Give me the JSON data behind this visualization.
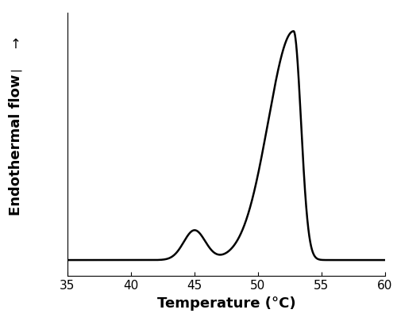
{
  "xlim": [
    35,
    60
  ],
  "ylim": [
    0.0,
    1.15
  ],
  "xticks": [
    35,
    40,
    45,
    50,
    55,
    60
  ],
  "xlabel": "Temperature (°C)",
  "ylabel": "Endothermal flow",
  "line_color": "#000000",
  "line_width": 1.8,
  "background_color": "#ffffff",
  "xlabel_fontsize": 13,
  "ylabel_fontsize": 13,
  "tick_fontsize": 11
}
